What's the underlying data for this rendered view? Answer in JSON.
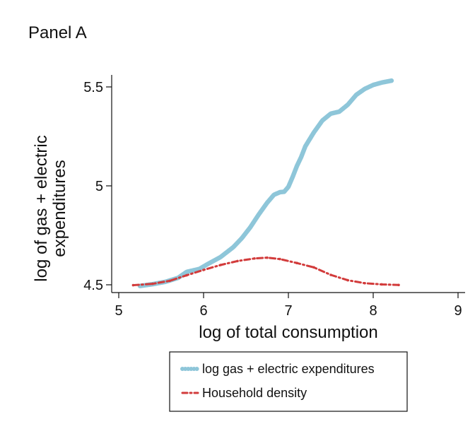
{
  "panel_title": "Panel A",
  "colors": {
    "series_1": "#8ec6d9",
    "series_2": "#d23b3b",
    "axis": "#111111"
  },
  "chart_data": {
    "type": "scatter",
    "title": "Panel A",
    "xlabel": "log of total consumption",
    "ylabel_lines": [
      "log of gas + electric",
      "expenditures"
    ],
    "xlim": [
      5,
      9
    ],
    "ylim": [
      4.5,
      5.5
    ],
    "xticks": [
      5,
      6,
      7,
      8,
      9
    ],
    "yticks": [
      4.5,
      5,
      5.5
    ],
    "legend_placement": "bottom",
    "series": [
      {
        "name": "log gas + electric expenditures",
        "style": "dots",
        "color": "#8ec6d9",
        "points": [
          [
            5.25,
            4.494
          ],
          [
            5.4,
            4.503
          ],
          [
            5.55,
            4.515
          ],
          [
            5.7,
            4.535
          ],
          [
            5.8,
            4.565
          ],
          [
            5.95,
            4.58
          ],
          [
            6.05,
            4.605
          ],
          [
            6.2,
            4.64
          ],
          [
            6.35,
            4.69
          ],
          [
            6.45,
            4.735
          ],
          [
            6.55,
            4.79
          ],
          [
            6.65,
            4.855
          ],
          [
            6.75,
            4.915
          ],
          [
            6.83,
            4.955
          ],
          [
            6.9,
            4.968
          ],
          [
            6.95,
            4.97
          ],
          [
            7.0,
            4.995
          ],
          [
            7.05,
            5.045
          ],
          [
            7.1,
            5.1
          ],
          [
            7.15,
            5.145
          ],
          [
            7.2,
            5.2
          ],
          [
            7.3,
            5.27
          ],
          [
            7.4,
            5.33
          ],
          [
            7.5,
            5.365
          ],
          [
            7.6,
            5.375
          ],
          [
            7.7,
            5.41
          ],
          [
            7.8,
            5.46
          ],
          [
            7.9,
            5.49
          ],
          [
            8.0,
            5.51
          ],
          [
            8.1,
            5.522
          ],
          [
            8.22,
            5.532
          ]
        ]
      },
      {
        "name": "Household density",
        "style": "dash-dot",
        "color": "#d23b3b",
        "points": [
          [
            5.17,
            4.498
          ],
          [
            5.4,
            4.505
          ],
          [
            5.6,
            4.52
          ],
          [
            5.8,
            4.548
          ],
          [
            6.0,
            4.575
          ],
          [
            6.2,
            4.6
          ],
          [
            6.4,
            4.62
          ],
          [
            6.6,
            4.633
          ],
          [
            6.75,
            4.637
          ],
          [
            6.9,
            4.63
          ],
          [
            7.1,
            4.61
          ],
          [
            7.3,
            4.588
          ],
          [
            7.5,
            4.55
          ],
          [
            7.7,
            4.523
          ],
          [
            7.9,
            4.508
          ],
          [
            8.1,
            4.502
          ],
          [
            8.3,
            4.499
          ]
        ]
      }
    ]
  }
}
